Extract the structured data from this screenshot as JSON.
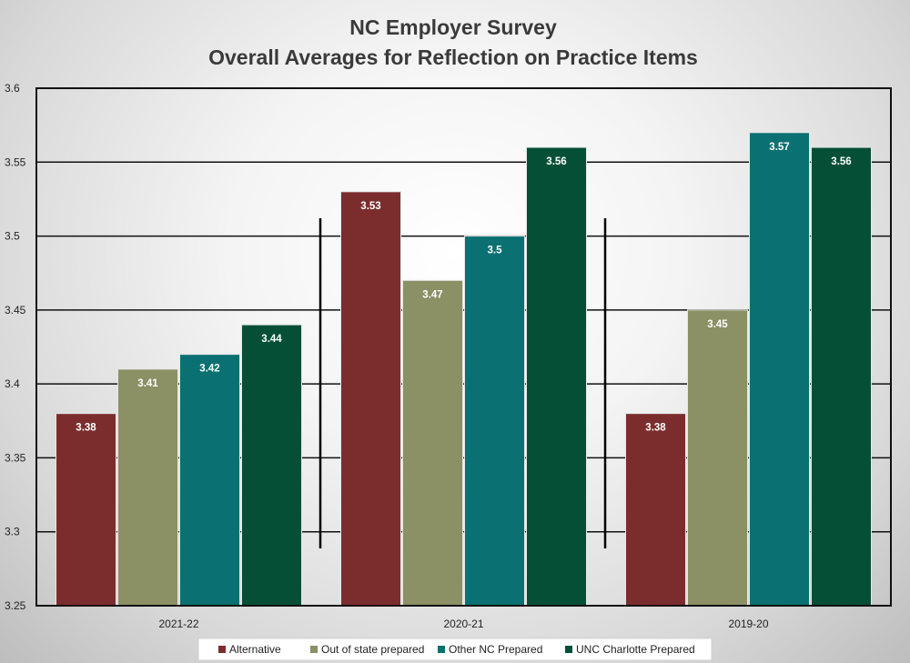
{
  "chart_data": {
    "type": "bar",
    "title": [
      "NC Employer Survey",
      "Overall Averages for Reflection on Practice Items"
    ],
    "xlabel": "",
    "ylabel": "",
    "categories": [
      "2021-22",
      "2020-21",
      "2019-20"
    ],
    "ylim": [
      3.25,
      3.6
    ],
    "yticks": [
      "3.25",
      "3.3",
      "3.35",
      "3.4",
      "3.45",
      "3.5",
      "3.55",
      "3.6"
    ],
    "grid": true,
    "legend_position": "bottom",
    "series": [
      {
        "name": "Alternative",
        "color": "#7b2d2d",
        "values": [
          3.38,
          3.53,
          3.38
        ],
        "labels": [
          "3.38",
          "3.53",
          "3.38"
        ]
      },
      {
        "name": "Out of state prepared",
        "color": "#8b9065",
        "values": [
          3.41,
          3.47,
          3.45
        ],
        "labels": [
          "3.41",
          "3.47",
          "3.45"
        ]
      },
      {
        "name": "Other NC Prepared",
        "color": "#0b7072",
        "values": [
          3.42,
          3.5,
          3.57
        ],
        "labels": [
          "3.42",
          "3.5",
          "3.57"
        ]
      },
      {
        "name": "UNC Charlotte Prepared",
        "color": "#044f35",
        "values": [
          3.44,
          3.56,
          3.56
        ],
        "labels": [
          "3.44",
          "3.56",
          "3.56"
        ]
      }
    ]
  }
}
